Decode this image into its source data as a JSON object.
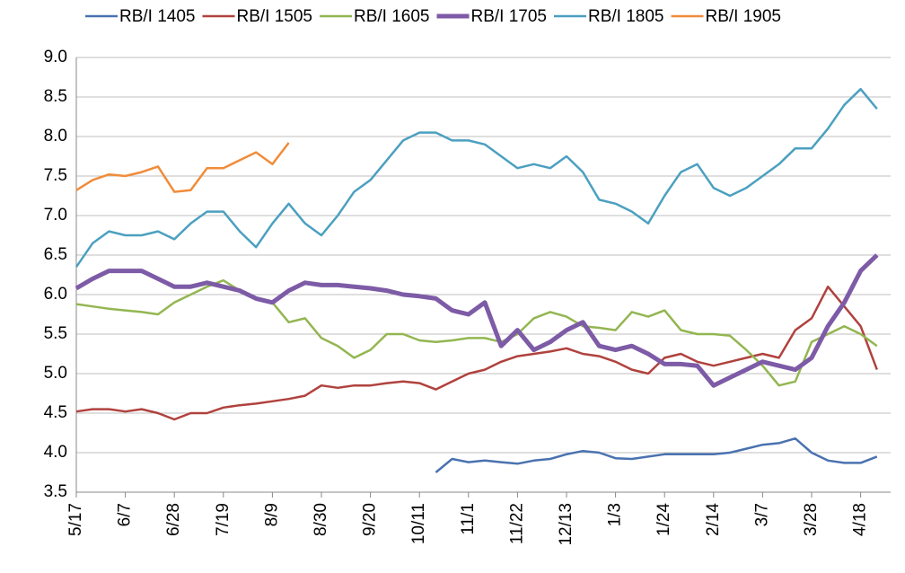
{
  "chart_data": {
    "type": "line",
    "categories": [
      "5/17",
      null,
      null,
      "6/7",
      null,
      null,
      "6/28",
      null,
      null,
      "7/19",
      null,
      null,
      "8/9",
      null,
      null,
      "8/30",
      null,
      null,
      "9/20",
      null,
      null,
      "10/11",
      null,
      null,
      "11/1",
      null,
      null,
      "11/22",
      null,
      null,
      "12/13",
      null,
      null,
      "1/3",
      null,
      null,
      "1/24",
      null,
      null,
      "2/14",
      null,
      null,
      "3/7",
      null,
      null,
      "3/28",
      null,
      null,
      "4/18",
      null
    ],
    "ylim": [
      3.5,
      9.0
    ],
    "yticks": [
      {
        "value": 3.5,
        "label": "3.5"
      },
      {
        "value": 4.0,
        "label": "4.0"
      },
      {
        "value": 4.5,
        "label": "4.5"
      },
      {
        "value": 5.0,
        "label": "5.0"
      },
      {
        "value": 5.5,
        "label": "5.5"
      },
      {
        "value": 6.0,
        "label": "6.0"
      },
      {
        "value": 6.5,
        "label": "6.5"
      },
      {
        "value": 7.0,
        "label": "7.0"
      },
      {
        "value": 7.5,
        "label": "7.5"
      },
      {
        "value": 8.0,
        "label": "8.0"
      },
      {
        "value": 8.5,
        "label": "8.5"
      },
      {
        "value": 9.0,
        "label": "9.0"
      }
    ],
    "grid": true,
    "legend": "top",
    "series": [
      {
        "name": "RB/I 1405",
        "color": "#4a72b0",
        "width": 2.5,
        "values": [
          null,
          null,
          null,
          null,
          null,
          null,
          null,
          null,
          null,
          null,
          null,
          null,
          null,
          null,
          null,
          null,
          null,
          null,
          null,
          null,
          null,
          null,
          3.75,
          3.92,
          3.88,
          3.9,
          3.88,
          3.86,
          3.9,
          3.92,
          3.98,
          4.02,
          4.0,
          3.93,
          3.92,
          3.95,
          3.98,
          3.98,
          3.98,
          3.98,
          4.0,
          4.05,
          4.1,
          4.12,
          4.18,
          4.0,
          3.9,
          3.87,
          3.87,
          3.95
        ]
      },
      {
        "name": "RB/I 1505",
        "color": "#b0423e",
        "width": 2.5,
        "values": [
          4.52,
          4.55,
          4.55,
          4.52,
          4.55,
          4.5,
          4.42,
          4.5,
          4.5,
          4.57,
          4.6,
          4.62,
          4.65,
          4.68,
          4.72,
          4.85,
          4.82,
          4.85,
          4.85,
          4.88,
          4.9,
          4.88,
          4.8,
          4.9,
          5.0,
          5.05,
          5.15,
          5.22,
          5.25,
          5.28,
          5.32,
          5.25,
          5.22,
          5.15,
          5.05,
          5.0,
          5.2,
          5.25,
          5.15,
          5.1,
          5.15,
          5.2,
          5.25,
          5.2,
          5.55,
          5.7,
          6.1,
          5.85,
          5.6,
          5.05
        ]
      },
      {
        "name": "RB/I 1605",
        "color": "#93b651",
        "width": 2.5,
        "values": [
          5.88,
          5.85,
          5.82,
          5.8,
          5.78,
          5.75,
          5.9,
          6.0,
          6.1,
          6.18,
          6.05,
          5.95,
          5.9,
          5.65,
          5.7,
          5.45,
          5.35,
          5.2,
          5.3,
          5.5,
          5.5,
          5.42,
          5.4,
          5.42,
          5.45,
          5.45,
          5.4,
          5.5,
          5.7,
          5.78,
          5.72,
          5.6,
          5.58,
          5.55,
          5.78,
          5.72,
          5.8,
          5.55,
          5.5,
          5.5,
          5.48,
          5.3,
          5.1,
          4.85,
          4.9,
          5.4,
          5.5,
          5.6,
          5.5,
          5.35
        ]
      },
      {
        "name": "RB/I 1705",
        "color": "#7d5ba6",
        "width": 5,
        "values": [
          6.08,
          6.2,
          6.3,
          6.3,
          6.3,
          6.2,
          6.1,
          6.1,
          6.15,
          6.1,
          6.05,
          5.95,
          5.9,
          6.05,
          6.15,
          6.12,
          6.12,
          6.1,
          6.08,
          6.05,
          6.0,
          5.98,
          5.95,
          5.8,
          5.75,
          5.9,
          5.35,
          5.55,
          5.3,
          5.4,
          5.55,
          5.65,
          5.35,
          5.3,
          5.35,
          5.25,
          5.12,
          5.12,
          5.1,
          4.85,
          4.95,
          5.05,
          5.15,
          5.1,
          5.05,
          5.2,
          5.6,
          5.9,
          6.3,
          6.5
        ]
      },
      {
        "name": "RB/I 1805",
        "color": "#4ba0c0",
        "width": 2.5,
        "values": [
          6.35,
          6.65,
          6.8,
          6.75,
          6.75,
          6.8,
          6.7,
          6.9,
          7.05,
          7.05,
          6.8,
          6.6,
          6.9,
          7.15,
          6.9,
          6.75,
          7.0,
          7.3,
          7.45,
          7.7,
          7.95,
          8.05,
          8.05,
          7.95,
          7.95,
          7.9,
          7.75,
          7.6,
          7.65,
          7.6,
          7.75,
          7.55,
          7.2,
          7.15,
          7.05,
          6.9,
          7.25,
          7.55,
          7.65,
          7.35,
          7.25,
          7.35,
          7.5,
          7.65,
          7.85,
          7.85,
          8.1,
          8.4,
          8.6,
          8.35
        ]
      },
      {
        "name": "RB/I 1905",
        "color": "#f08c3a",
        "width": 2.5,
        "values": [
          7.32,
          7.45,
          7.52,
          7.5,
          7.55,
          7.62,
          7.3,
          7.32,
          7.6,
          7.6,
          7.7,
          7.8,
          7.65,
          7.92,
          null,
          null,
          null,
          null,
          null,
          null,
          null,
          null,
          null,
          null,
          null,
          null,
          null,
          null,
          null,
          null,
          null,
          null,
          null,
          null,
          null,
          null,
          null,
          null,
          null,
          null,
          null,
          null,
          null,
          null,
          null,
          null,
          null,
          null,
          null,
          null
        ]
      }
    ]
  }
}
